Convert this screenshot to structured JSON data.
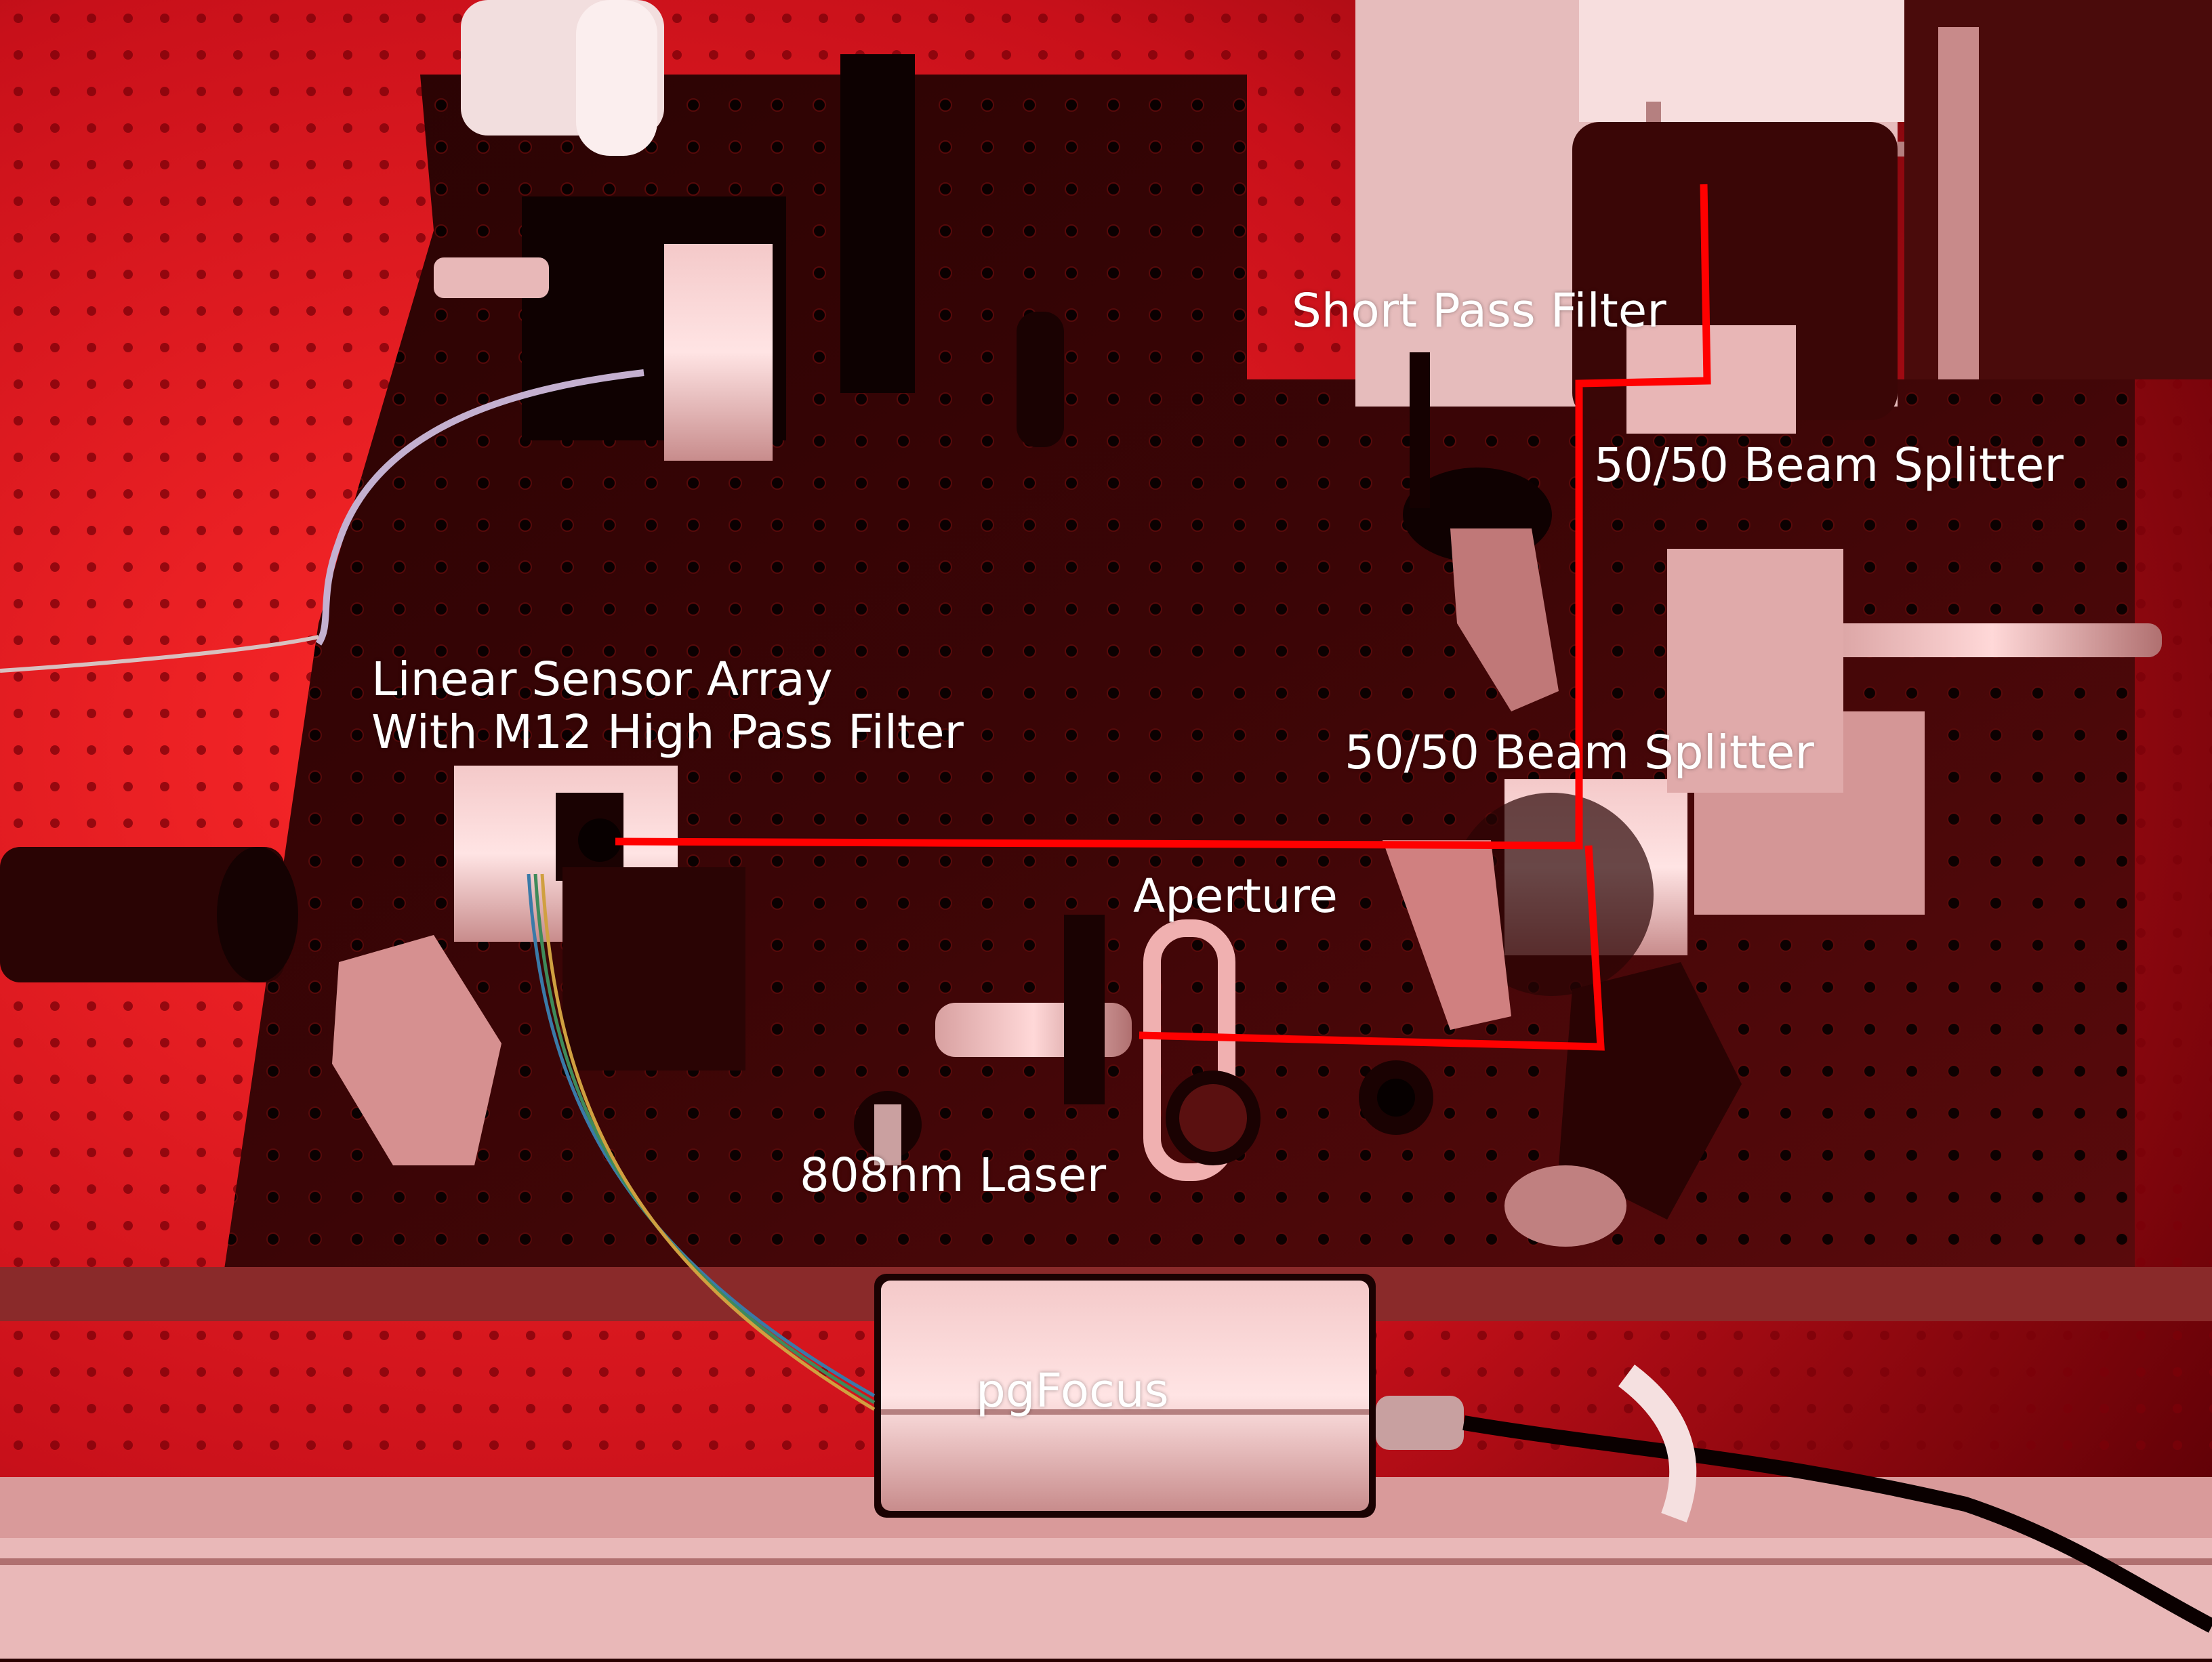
{
  "labels": {
    "short_pass_filter": "Short Pass Filter",
    "beam_splitter_top": "50/50 Beam Splitter",
    "linear_sensor_line1": "Linear Sensor Array",
    "linear_sensor_line2": "With M12 High Pass Filter",
    "beam_splitter_mid": "50/50 Beam Splitter",
    "aperture": "Aperture",
    "laser": "808nm Laser",
    "pgfocus": "pgFocus"
  },
  "colors": {
    "beam_path": "#ff0000",
    "annotation_text": "#ffffff",
    "ambient_light": "#e0141e"
  }
}
